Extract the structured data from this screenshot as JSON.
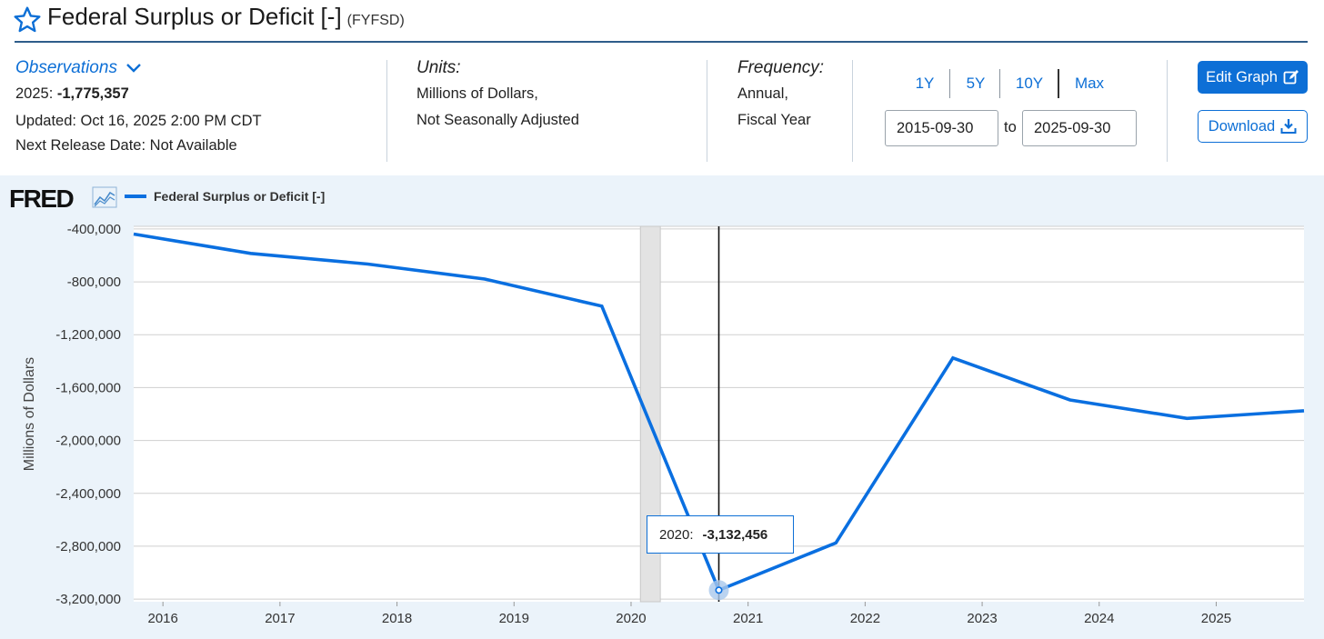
{
  "header": {
    "title": "Federal Surplus or Deficit [-]",
    "series_id": "(FYFSD)"
  },
  "observations": {
    "label": "Observations",
    "latest_label": "2025:",
    "latest_value": "-1,775,357",
    "updated": "Updated: Oct 16, 2025 2:00 PM CDT",
    "next_release": "Next Release Date: Not Available"
  },
  "units": {
    "label": "Units:",
    "line1": "Millions of Dollars,",
    "line2": "Not Seasonally Adjusted"
  },
  "frequency": {
    "label": "Frequency:",
    "line1": "Annual,",
    "line2": "Fiscal Year"
  },
  "range": {
    "buttons": [
      "1Y",
      "5Y",
      "10Y",
      "Max"
    ],
    "start": "2015-09-30",
    "to_label": "to",
    "end": "2025-09-30"
  },
  "actions": {
    "edit_label": "Edit Graph",
    "download_label": "Download"
  },
  "logo": {
    "text": "FRED"
  },
  "colors": {
    "accent": "#0d6fd6",
    "line": "#0a6fe0",
    "rule": "#2e5d8a",
    "chart_bg": "#ebf3fa",
    "recession": "#e3e3e3"
  },
  "tooltip": {
    "label": "2020:",
    "value": "-3,132,456"
  },
  "chart_data": {
    "type": "line",
    "title": "Federal Surplus or Deficit [-]",
    "ylabel": "Millions of Dollars",
    "xlabel": "",
    "legend": "Federal Surplus or Deficit [-]",
    "legend_position": "top-left",
    "ylim": [
      -3220000,
      -380000
    ],
    "xlim": [
      2015.75,
      2025.75
    ],
    "y_ticks": [
      -400000,
      -800000,
      -1200000,
      -1600000,
      -2000000,
      -2400000,
      -2800000,
      -3200000
    ],
    "y_tick_labels": [
      "-400,000",
      "-800,000",
      "-1,200,000",
      "-1,600,000",
      "-2,000,000",
      "-2,400,000",
      "-2,800,000",
      "-3,200,000"
    ],
    "x_ticks": [
      2016,
      2017,
      2018,
      2019,
      2020,
      2021,
      2022,
      2023,
      2024,
      2025
    ],
    "x_tick_labels": [
      "2016",
      "2017",
      "2018",
      "2019",
      "2020",
      "2021",
      "2022",
      "2023",
      "2024",
      "2025"
    ],
    "grid": true,
    "recession_shading": [
      2020.08,
      2020.25
    ],
    "hover_year": 2020,
    "series": [
      {
        "name": "Federal Surplus or Deficit [-]",
        "x": [
          2015.75,
          2016.75,
          2017.75,
          2018.75,
          2019.75,
          2020.75,
          2021.75,
          2022.75,
          2023.75,
          2024.75,
          2025.75
        ],
        "values": [
          -438496,
          -584651,
          -665446,
          -779137,
          -983595,
          -3132456,
          -2775329,
          -1375906,
          -1693716,
          -1832816,
          -1775357
        ]
      }
    ]
  }
}
